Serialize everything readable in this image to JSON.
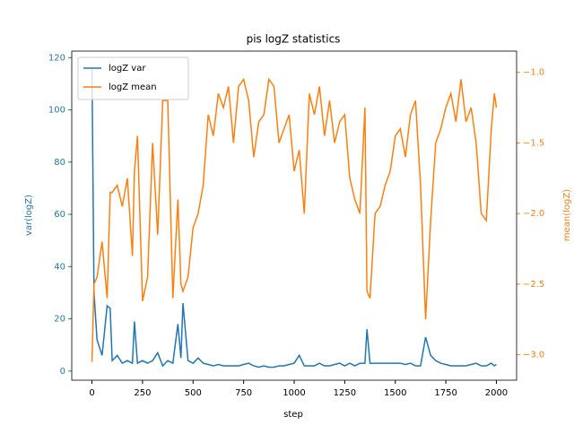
{
  "chart_data": {
    "type": "line",
    "title": "pis logZ statistics",
    "x_label": "step",
    "y_label": "var(logZ)",
    "y2_label": "mean(logZ)",
    "x": [
      0,
      10,
      25,
      50,
      75,
      90,
      100,
      125,
      150,
      175,
      200,
      210,
      225,
      250,
      275,
      300,
      325,
      350,
      375,
      400,
      425,
      440,
      450,
      475,
      500,
      525,
      550,
      575,
      600,
      625,
      650,
      675,
      700,
      725,
      750,
      775,
      800,
      825,
      850,
      875,
      900,
      925,
      950,
      975,
      1000,
      1025,
      1050,
      1075,
      1100,
      1125,
      1150,
      1175,
      1200,
      1225,
      1250,
      1275,
      1300,
      1325,
      1350,
      1360,
      1375,
      1400,
      1425,
      1450,
      1475,
      1500,
      1525,
      1550,
      1575,
      1600,
      1625,
      1650,
      1675,
      1700,
      1725,
      1750,
      1775,
      1800,
      1825,
      1850,
      1875,
      1900,
      1925,
      1950,
      1975,
      1990,
      2000
    ],
    "series": [
      {
        "name": "logZ var",
        "color": "#1f77b4",
        "axis": "y",
        "values": [
          116,
          30,
          12,
          6,
          25,
          24,
          4,
          6,
          3,
          4,
          3,
          19,
          3,
          4,
          3,
          4,
          7,
          2,
          4,
          3,
          18,
          5,
          26,
          4,
          3,
          5,
          3,
          2.5,
          2,
          2.5,
          2,
          2,
          2,
          2,
          2.5,
          3,
          2,
          1.5,
          2,
          1.5,
          1.5,
          2,
          2,
          2.5,
          3,
          6,
          2,
          2,
          2,
          3,
          2,
          2,
          2.5,
          3,
          2,
          3,
          2,
          3,
          3,
          16,
          3,
          3,
          3,
          3,
          3,
          3,
          3,
          2.5,
          3,
          2,
          2,
          13,
          6,
          4,
          3,
          2.5,
          2,
          2,
          2,
          2,
          2.5,
          3,
          2,
          2,
          3,
          2,
          2.5
        ]
      },
      {
        "name": "logZ mean",
        "color": "#ff7f0e",
        "axis": "y2",
        "values": [
          -3.05,
          -2.5,
          -2.45,
          -2.2,
          -2.6,
          -1.85,
          -1.85,
          -1.8,
          -1.95,
          -1.75,
          -2.3,
          -1.7,
          -1.45,
          -2.62,
          -2.45,
          -1.5,
          -2.15,
          -1.2,
          -1.2,
          -2.6,
          -1.9,
          -2.5,
          -2.55,
          -2.45,
          -2.1,
          -2.0,
          -1.8,
          -1.3,
          -1.45,
          -1.15,
          -1.25,
          -1.1,
          -1.5,
          -1.1,
          -1.05,
          -1.2,
          -1.6,
          -1.35,
          -1.3,
          -1.05,
          -1.1,
          -1.5,
          -1.4,
          -1.3,
          -1.7,
          -1.55,
          -2.0,
          -1.15,
          -1.3,
          -1.1,
          -1.45,
          -1.2,
          -1.5,
          -1.35,
          -1.3,
          -1.75,
          -1.9,
          -2.0,
          -1.25,
          -2.55,
          -2.6,
          -2.0,
          -1.95,
          -1.8,
          -1.7,
          -1.45,
          -1.4,
          -1.6,
          -1.3,
          -1.2,
          -1.8,
          -2.75,
          -2.05,
          -1.5,
          -1.4,
          -1.25,
          -1.15,
          -1.35,
          -1.05,
          -1.35,
          -1.25,
          -1.5,
          -2.0,
          -2.05,
          -1.4,
          -1.15,
          -1.25
        ]
      }
    ],
    "xlim": [
      -100,
      2100
    ],
    "xticks": [
      0,
      250,
      500,
      750,
      1000,
      1250,
      1500,
      1750,
      2000
    ],
    "ylim": [
      -3.5,
      122.5
    ],
    "yticks": [
      0,
      20,
      40,
      60,
      80,
      100,
      120
    ],
    "y2lim": [
      -3.18,
      -0.85
    ],
    "y2ticks": [
      {
        "value": -3.0,
        "label": "−3.0"
      },
      {
        "value": -2.5,
        "label": "−2.5"
      },
      {
        "value": -2.0,
        "label": "−2.0"
      },
      {
        "value": -1.5,
        "label": "−1.5"
      },
      {
        "value": -1.0,
        "label": "−1.0"
      }
    ],
    "legend": "upper left"
  }
}
